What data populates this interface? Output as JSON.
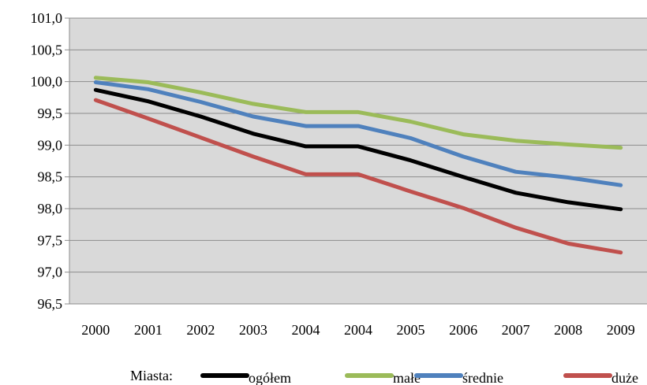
{
  "chart_data": {
    "type": "line",
    "categories": [
      "2000",
      "2001",
      "2002",
      "2003",
      "2004",
      "2004",
      "2005",
      "2006",
      "2007",
      "2008",
      "2009"
    ],
    "y_tick_labels": [
      "96,5",
      "97,0",
      "97,5",
      "98,0",
      "98,5",
      "99,0",
      "99,5",
      "100,0",
      "100,5",
      "101,0"
    ],
    "ylim": [
      96.5,
      101.0
    ],
    "ytick_step": 0.5,
    "grid": true,
    "plot_background": "#d9d9d9",
    "legend_title": "Miasta:",
    "legend_position": "bottom",
    "series": [
      {
        "name": "ogółem",
        "color": "#000000",
        "values": [
          99.87,
          99.69,
          99.45,
          99.18,
          98.98,
          98.98,
          98.76,
          98.5,
          98.25,
          98.1,
          97.99
        ]
      },
      {
        "name": "małe",
        "color": "#9bbb59",
        "values": [
          100.06,
          99.99,
          99.83,
          99.65,
          99.52,
          99.52,
          99.37,
          99.17,
          99.07,
          99.01,
          98.96
        ]
      },
      {
        "name": "średnie",
        "color": "#4f81bd",
        "values": [
          99.99,
          99.88,
          99.68,
          99.45,
          99.3,
          99.3,
          99.11,
          98.82,
          98.58,
          98.49,
          98.37
        ]
      },
      {
        "name": "duże",
        "color": "#c0504d",
        "values": [
          99.71,
          99.42,
          99.12,
          98.82,
          98.54,
          98.54,
          98.27,
          98.01,
          97.7,
          97.45,
          97.31
        ]
      }
    ]
  }
}
